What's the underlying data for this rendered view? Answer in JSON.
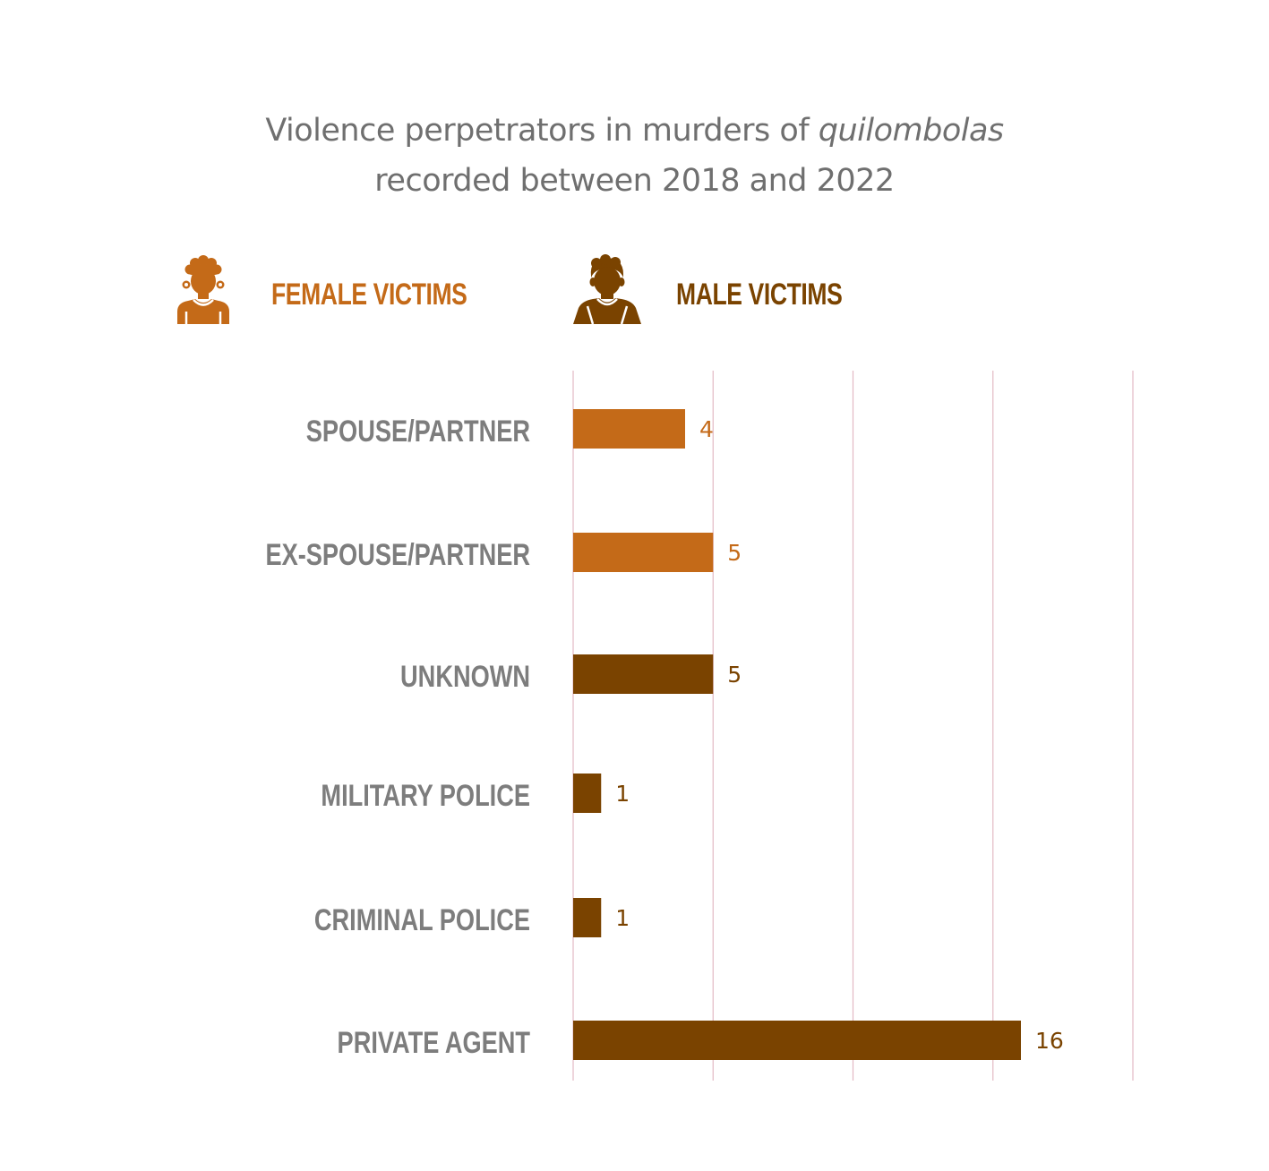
{
  "title": {
    "line1_prefix": "Violence perpetrators in murders of ",
    "line1_italic": "quilombolas",
    "line2": "recorded between 2018 and 2022"
  },
  "legend": [
    {
      "label": "FEMALE VICTIMS",
      "color": "#c46a18",
      "icon": "female-person-icon"
    },
    {
      "label": "MALE VICTIMS",
      "color": "#7a4300",
      "icon": "male-person-icon"
    }
  ],
  "colors": {
    "female": "#c46a18",
    "male": "#7a4300",
    "gridline": "#e3b9c4",
    "category_text": "#7d7d7d"
  },
  "chart_data": {
    "type": "bar",
    "orientation": "horizontal",
    "categories": [
      "SPOUSE/PARTNER",
      "EX-SPOUSE/PARTNER",
      "UNKNOWN",
      "MILITARY POLICE",
      "CRIMINAL POLICE",
      "PRIVATE AGENT"
    ],
    "series": [
      {
        "name": "FEMALE VICTIMS",
        "values": [
          4,
          5,
          null,
          null,
          null,
          null
        ]
      },
      {
        "name": "MALE VICTIMS",
        "values": [
          null,
          null,
          5,
          1,
          1,
          16
        ]
      }
    ],
    "value_labels": [
      "4",
      "5",
      "5",
      "1",
      "1",
      "16"
    ],
    "xlim": [
      0,
      20
    ],
    "gridlines": [
      0,
      5,
      10,
      15,
      20
    ],
    "grid": true
  }
}
